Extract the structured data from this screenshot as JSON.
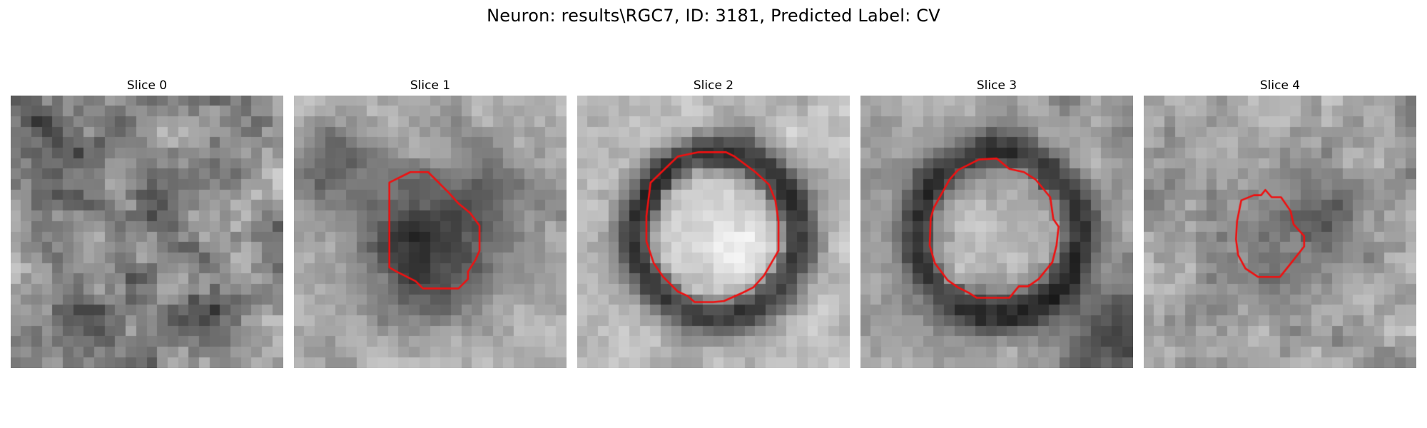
{
  "figure": {
    "title": "Neuron: results\\RGC7, ID: 3181, Predicted Label: CV"
  },
  "panels": [
    {
      "title": "Slice 0",
      "contour": false
    },
    {
      "title": "Slice 1",
      "contour": true
    },
    {
      "title": "Slice 2",
      "contour": true
    },
    {
      "title": "Slice 3",
      "contour": true
    },
    {
      "title": "Slice 4",
      "contour": true
    }
  ],
  "colors": {
    "contour": "#ee1111",
    "colormap": "gray"
  }
}
